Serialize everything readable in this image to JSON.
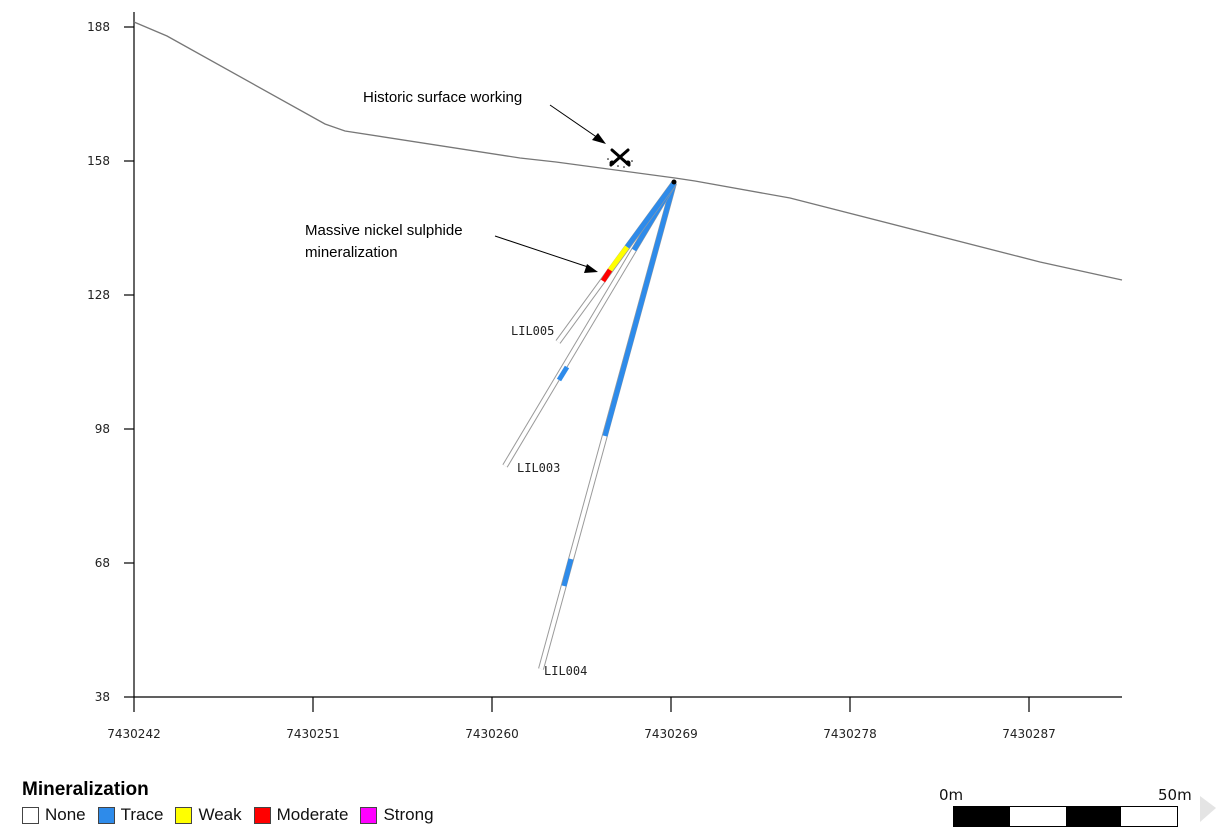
{
  "axes": {
    "y_ticks": [
      "188",
      "158",
      "128",
      "98",
      "68",
      "38"
    ],
    "x_ticks": [
      "7430242",
      "7430251",
      "7430260",
      "7430269",
      "7430278",
      "7430287"
    ]
  },
  "annotations": {
    "surface_working": "Historic surface working",
    "mineralization_line1": "Massive nickel sulphide",
    "mineralization_line2": "mineralization"
  },
  "drillholes": [
    {
      "label": "LIL005"
    },
    {
      "label": "LIL003"
    },
    {
      "label": "LIL004"
    }
  ],
  "legend": {
    "title": "Mineralization",
    "items": [
      {
        "label": "None",
        "color": "#ffffff"
      },
      {
        "label": "Trace",
        "color": "#2e8bea"
      },
      {
        "label": "Weak",
        "color": "#ffff00"
      },
      {
        "label": "Moderate",
        "color": "#ff0000"
      },
      {
        "label": "Strong",
        "color": "#ff00ff"
      }
    ]
  },
  "scale_bar": {
    "start": "0m",
    "end": "50m"
  },
  "colors": {
    "none": "#ffffff",
    "trace": "#2e8bea",
    "weak": "#ffff00",
    "moderate": "#ff0000",
    "strong": "#ff00ff",
    "surface_line": "#777777"
  }
}
